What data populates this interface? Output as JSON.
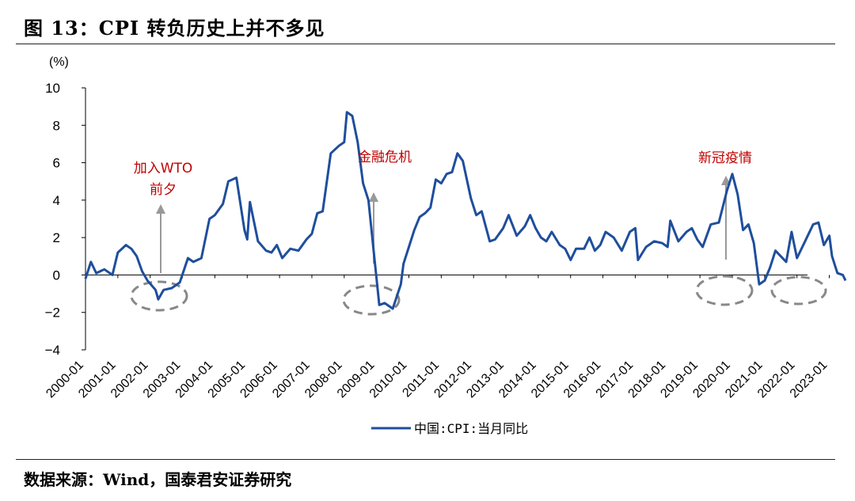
{
  "title": "图 13：CPI 转负历史上并不多见",
  "source": "数据来源：Wind，国泰君安证券研究",
  "chart_data": {
    "type": "line",
    "unit_label": "(%)",
    "ylim": [
      -4,
      10
    ],
    "yticks": [
      -4,
      -2,
      0,
      2,
      4,
      6,
      8,
      10
    ],
    "x_categories": [
      "2000-01",
      "2001-01",
      "2002-01",
      "2003-01",
      "2004-01",
      "2005-01",
      "2006-01",
      "2007-01",
      "2008-01",
      "2009-01",
      "2010-01",
      "2011-01",
      "2012-01",
      "2013-01",
      "2014-01",
      "2015-01",
      "2016-01",
      "2017-01",
      "2018-01",
      "2019-01",
      "2020-01",
      "2021-01",
      "2022-01",
      "2023-01"
    ],
    "grid": false,
    "legend_position": "bottom",
    "series": [
      {
        "name": "中国:CPI:当月同比",
        "color": "#1f4e9c",
        "points": [
          [
            "2000-01",
            -0.2
          ],
          [
            "2000-03",
            0.7
          ],
          [
            "2000-05",
            0.1
          ],
          [
            "2000-08",
            0.3
          ],
          [
            "2000-11",
            0.0
          ],
          [
            "2001-01",
            1.2
          ],
          [
            "2001-04",
            1.6
          ],
          [
            "2001-06",
            1.4
          ],
          [
            "2001-08",
            1.0
          ],
          [
            "2001-10",
            0.2
          ],
          [
            "2001-12",
            -0.3
          ],
          [
            "2002-03",
            -0.8
          ],
          [
            "2002-04",
            -1.3
          ],
          [
            "2002-06",
            -0.8
          ],
          [
            "2002-09",
            -0.7
          ],
          [
            "2002-12",
            -0.4
          ],
          [
            "2003-03",
            0.9
          ],
          [
            "2003-05",
            0.7
          ],
          [
            "2003-08",
            0.9
          ],
          [
            "2003-11",
            3.0
          ],
          [
            "2004-01",
            3.2
          ],
          [
            "2004-04",
            3.8
          ],
          [
            "2004-06",
            5.0
          ],
          [
            "2004-09",
            5.2
          ],
          [
            "2004-12",
            2.4
          ],
          [
            "2005-01",
            1.9
          ],
          [
            "2005-02",
            3.9
          ],
          [
            "2005-05",
            1.8
          ],
          [
            "2005-08",
            1.3
          ],
          [
            "2005-10",
            1.2
          ],
          [
            "2005-12",
            1.6
          ],
          [
            "2006-02",
            0.9
          ],
          [
            "2006-05",
            1.4
          ],
          [
            "2006-08",
            1.3
          ],
          [
            "2006-11",
            1.9
          ],
          [
            "2007-01",
            2.2
          ],
          [
            "2007-03",
            3.3
          ],
          [
            "2007-05",
            3.4
          ],
          [
            "2007-08",
            6.5
          ],
          [
            "2007-11",
            6.9
          ],
          [
            "2008-01",
            7.1
          ],
          [
            "2008-02",
            8.7
          ],
          [
            "2008-04",
            8.5
          ],
          [
            "2008-06",
            7.1
          ],
          [
            "2008-08",
            4.9
          ],
          [
            "2008-10",
            4.0
          ],
          [
            "2008-12",
            1.2
          ],
          [
            "2009-02",
            -1.6
          ],
          [
            "2009-04",
            -1.5
          ],
          [
            "2009-07",
            -1.8
          ],
          [
            "2009-10",
            -0.5
          ],
          [
            "2009-11",
            0.6
          ],
          [
            "2010-01",
            1.5
          ],
          [
            "2010-03",
            2.4
          ],
          [
            "2010-05",
            3.1
          ],
          [
            "2010-07",
            3.3
          ],
          [
            "2010-09",
            3.6
          ],
          [
            "2010-11",
            5.1
          ],
          [
            "2011-01",
            4.9
          ],
          [
            "2011-03",
            5.4
          ],
          [
            "2011-05",
            5.5
          ],
          [
            "2011-07",
            6.5
          ],
          [
            "2011-09",
            6.1
          ],
          [
            "2011-12",
            4.1
          ],
          [
            "2012-02",
            3.2
          ],
          [
            "2012-04",
            3.4
          ],
          [
            "2012-07",
            1.8
          ],
          [
            "2012-09",
            1.9
          ],
          [
            "2012-12",
            2.5
          ],
          [
            "2013-02",
            3.2
          ],
          [
            "2013-05",
            2.1
          ],
          [
            "2013-08",
            2.6
          ],
          [
            "2013-10",
            3.2
          ],
          [
            "2013-12",
            2.5
          ],
          [
            "2014-02",
            2.0
          ],
          [
            "2014-04",
            1.8
          ],
          [
            "2014-06",
            2.3
          ],
          [
            "2014-09",
            1.6
          ],
          [
            "2014-11",
            1.4
          ],
          [
            "2015-01",
            0.8
          ],
          [
            "2015-03",
            1.4
          ],
          [
            "2015-06",
            1.4
          ],
          [
            "2015-08",
            2.0
          ],
          [
            "2015-10",
            1.3
          ],
          [
            "2015-12",
            1.6
          ],
          [
            "2016-02",
            2.3
          ],
          [
            "2016-05",
            2.0
          ],
          [
            "2016-08",
            1.3
          ],
          [
            "2016-11",
            2.3
          ],
          [
            "2017-01",
            2.5
          ],
          [
            "2017-02",
            0.8
          ],
          [
            "2017-05",
            1.5
          ],
          [
            "2017-08",
            1.8
          ],
          [
            "2017-11",
            1.7
          ],
          [
            "2018-01",
            1.5
          ],
          [
            "2018-02",
            2.9
          ],
          [
            "2018-05",
            1.8
          ],
          [
            "2018-08",
            2.3
          ],
          [
            "2018-10",
            2.5
          ],
          [
            "2018-12",
            1.9
          ],
          [
            "2019-02",
            1.5
          ],
          [
            "2019-05",
            2.7
          ],
          [
            "2019-08",
            2.8
          ],
          [
            "2019-11",
            4.5
          ],
          [
            "2020-01",
            5.4
          ],
          [
            "2020-03",
            4.3
          ],
          [
            "2020-05",
            2.4
          ],
          [
            "2020-07",
            2.7
          ],
          [
            "2020-09",
            1.7
          ],
          [
            "2020-11",
            -0.5
          ],
          [
            "2021-01",
            -0.3
          ],
          [
            "2021-03",
            0.4
          ],
          [
            "2021-05",
            1.3
          ],
          [
            "2021-07",
            1.0
          ],
          [
            "2021-09",
            0.7
          ],
          [
            "2021-11",
            2.3
          ],
          [
            "2022-01",
            0.9
          ],
          [
            "2022-03",
            1.5
          ],
          [
            "2022-05",
            2.1
          ],
          [
            "2022-07",
            2.7
          ],
          [
            "2022-09",
            2.8
          ],
          [
            "2022-11",
            1.6
          ],
          [
            "2023-01",
            2.1
          ],
          [
            "2023-02",
            1.0
          ],
          [
            "2023-04",
            0.1
          ],
          [
            "2023-06",
            0.0
          ],
          [
            "2023-07",
            -0.3
          ]
        ]
      }
    ],
    "annotations": [
      {
        "text_lines": [
          "加入WTO",
          "前夕"
        ],
        "arrow": true
      },
      {
        "text_lines": [
          "金融危机"
        ],
        "arrow": true
      },
      {
        "text_lines": [
          "新冠疫情"
        ],
        "arrow": true
      }
    ],
    "colors": {
      "line": "#1f4e9c",
      "annotation": "#c00000",
      "arrow": "#999999",
      "ellipse": "#888888"
    }
  }
}
